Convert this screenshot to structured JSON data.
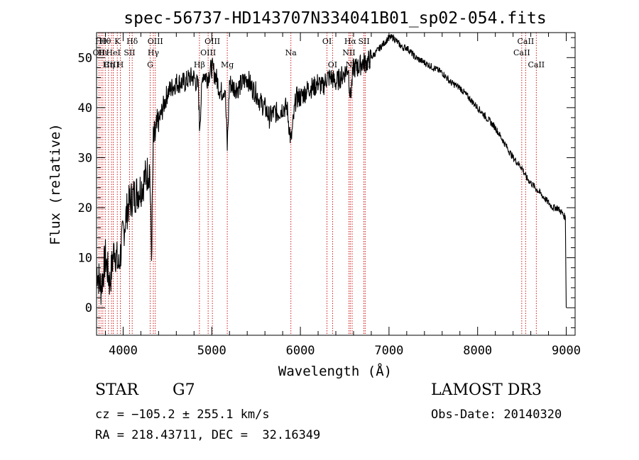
{
  "chart_data": {
    "type": "line",
    "title": "spec-56737-HD143707N334041B01_sp02-054.fits",
    "xlabel": "Wavelength (Å)",
    "ylabel": "Flux (relative)",
    "xlim": [
      3700,
      9100
    ],
    "ylim": [
      -5.5,
      55
    ],
    "xticks": [
      4000,
      5000,
      6000,
      7000,
      8000,
      9000
    ],
    "yticks": [
      0,
      10,
      20,
      30,
      40,
      50
    ],
    "series": [
      {
        "name": "flux",
        "x": [
          3700,
          3750,
          3800,
          3850,
          3900,
          3950,
          4000,
          4050,
          4100,
          4150,
          4200,
          4250,
          4300,
          4320,
          4340,
          4360,
          4400,
          4450,
          4500,
          4550,
          4600,
          4650,
          4700,
          4750,
          4800,
          4850,
          4861,
          4900,
          4950,
          5000,
          5050,
          5100,
          5150,
          5175,
          5200,
          5250,
          5300,
          5350,
          5400,
          5450,
          5500,
          5550,
          5600,
          5650,
          5700,
          5750,
          5800,
          5850,
          5893,
          5950,
          6000,
          6050,
          6100,
          6150,
          6200,
          6250,
          6300,
          6350,
          6400,
          6450,
          6500,
          6540,
          6563,
          6600,
          6650,
          6700,
          6750,
          6800,
          6850,
          6900,
          6950,
          7000,
          7050,
          7100,
          7150,
          7200,
          7250,
          7300,
          7400,
          7500,
          7600,
          7700,
          7800,
          7900,
          8000,
          8100,
          8200,
          8300,
          8400,
          8500,
          8550,
          8600,
          8650,
          8700,
          8750,
          8800,
          8850,
          8900,
          8950,
          8990,
          9000
        ],
        "y": [
          8,
          4,
          10,
          5,
          12,
          8,
          15,
          20,
          22,
          23,
          24,
          26,
          28,
          10,
          33,
          34,
          37,
          40,
          43,
          44,
          45,
          45,
          45,
          46,
          46,
          44,
          36,
          47,
          46,
          48,
          46,
          43,
          44,
          32,
          45,
          44,
          44,
          45,
          46,
          44,
          43,
          41,
          40,
          38,
          39,
          39,
          40,
          40,
          33,
          42,
          42,
          43,
          44,
          44,
          45,
          44,
          46,
          46,
          45,
          46,
          47,
          48,
          42,
          48,
          48,
          49,
          49,
          50,
          51,
          52,
          53,
          54,
          54,
          53,
          52,
          52,
          51,
          50,
          49,
          48,
          47,
          45,
          44,
          42,
          40,
          38,
          36,
          33,
          30,
          28,
          26,
          25,
          24,
          23,
          22,
          21,
          20,
          20,
          19,
          18,
          0
        ]
      }
    ],
    "lines": [
      {
        "wl": 3727,
        "label": "OII",
        "row": 1
      },
      {
        "wl": 3750,
        "label": "Hθ",
        "row": 0
      },
      {
        "wl": 3771,
        "label": "Hι",
        "row": 1
      },
      {
        "wl": 3798,
        "label": "Hθ",
        "row": 0
      },
      {
        "wl": 3835,
        "label": "Hη",
        "row": 2
      },
      {
        "wl": 3869,
        "label": "CIII",
        "row": 2
      },
      {
        "wl": 3889,
        "label": "HeI",
        "row": 1
      },
      {
        "wl": 3934,
        "label": "K",
        "row": 0
      },
      {
        "wl": 3968,
        "label": "H",
        "row": 2
      },
      {
        "wl": 4072,
        "label": "SII",
        "row": 1
      },
      {
        "wl": 4102,
        "label": "Hδ",
        "row": 0
      },
      {
        "wl": 4305,
        "label": "G",
        "row": 2
      },
      {
        "wl": 4341,
        "label": "Hγ",
        "row": 1
      },
      {
        "wl": 4363,
        "label": "OIII",
        "row": 0
      },
      {
        "wl": 4861,
        "label": "Hβ",
        "row": 2
      },
      {
        "wl": 4959,
        "label": "OIII",
        "row": 1
      },
      {
        "wl": 5007,
        "label": "OIII",
        "row": 0
      },
      {
        "wl": 5175,
        "label": "Mg",
        "row": 2
      },
      {
        "wl": 5893,
        "label": "Na",
        "row": 1
      },
      {
        "wl": 6300,
        "label": "OI",
        "row": 0
      },
      {
        "wl": 6363,
        "label": "OI",
        "row": 2
      },
      {
        "wl": 6548,
        "label": "NII",
        "row": 1
      },
      {
        "wl": 6563,
        "label": "Hα",
        "row": 0
      },
      {
        "wl": 6584,
        "label": "NII",
        "row": 2
      },
      {
        "wl": 6717,
        "label": "SII",
        "row": 0
      },
      {
        "wl": 6731,
        "label": "SII",
        "row": 2
      },
      {
        "wl": 8498,
        "label": "CaII",
        "row": 1
      },
      {
        "wl": 8542,
        "label": "CaII",
        "row": 0
      },
      {
        "wl": 8662,
        "label": "CaII",
        "row": 2
      }
    ]
  },
  "info": {
    "star_label": "STAR",
    "spectral_type": "G7",
    "survey": "LAMOST DR3",
    "cz": "cz = −105.2 ± 255.1 km/s",
    "obs_date": "Obs-Date: 20140320",
    "radec": "RA = 218.43711, DEC =  32.16349"
  },
  "colors": {
    "line": "#000000",
    "marker": "#cc0000"
  }
}
